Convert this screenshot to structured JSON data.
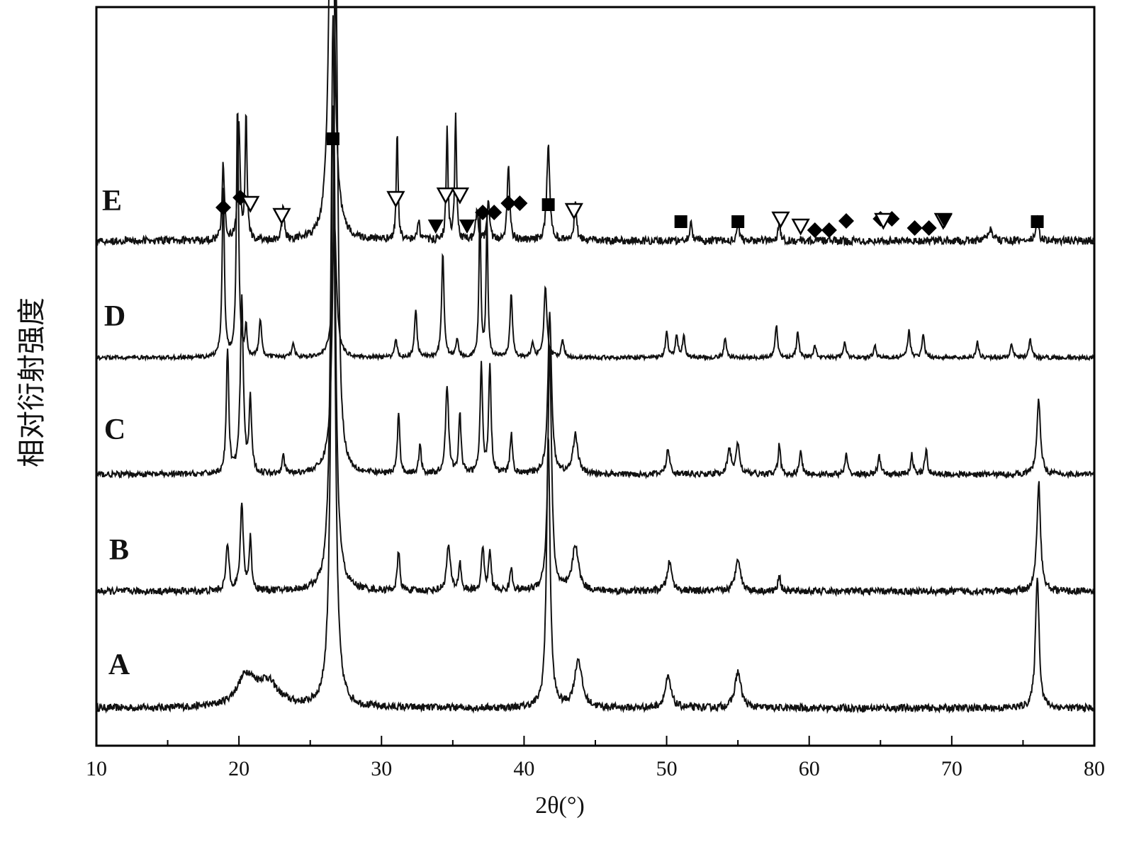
{
  "chart_data": {
    "type": "line",
    "title": "",
    "xlabel": "2θ(°)",
    "ylabel": "相对衍射强度",
    "xlim": [
      10,
      80
    ],
    "x_ticks": [
      10,
      20,
      30,
      40,
      50,
      60,
      70,
      80
    ],
    "x_tick_labels": [
      "10",
      "20",
      "30",
      "40",
      "50",
      "60",
      "70",
      "80"
    ],
    "y_ticks_shown": false,
    "grid": false,
    "legend": "none; series labelled at left of each trace",
    "series": [
      {
        "name": "A",
        "baseline": 0,
        "peaks": [
          [
            20.5,
            0.05,
            1.5
          ],
          [
            22,
            0.04,
            1.8
          ],
          [
            26.6,
            1.0,
            0.35
          ],
          [
            41.7,
            0.45,
            0.3
          ],
          [
            43.8,
            0.08,
            0.6
          ],
          [
            50.1,
            0.05,
            0.5
          ],
          [
            55.0,
            0.06,
            0.5
          ],
          [
            76.0,
            0.22,
            0.3
          ]
        ]
      },
      {
        "name": "B",
        "baseline": 1,
        "peaks": [
          [
            19.2,
            0.08,
            0.25
          ],
          [
            20.2,
            0.15,
            0.25
          ],
          [
            20.8,
            0.09,
            0.2
          ],
          [
            26.6,
            1.0,
            0.35
          ],
          [
            31.2,
            0.07,
            0.2
          ],
          [
            34.7,
            0.08,
            0.3
          ],
          [
            35.5,
            0.05,
            0.2
          ],
          [
            37.1,
            0.08,
            0.2
          ],
          [
            37.6,
            0.07,
            0.2
          ],
          [
            39.1,
            0.04,
            0.2
          ],
          [
            41.8,
            0.42,
            0.3
          ],
          [
            43.6,
            0.08,
            0.5
          ],
          [
            50.2,
            0.05,
            0.4
          ],
          [
            55.0,
            0.06,
            0.4
          ],
          [
            57.9,
            0.03,
            0.2
          ],
          [
            76.1,
            0.19,
            0.3
          ]
        ]
      },
      {
        "name": "C",
        "baseline": 2,
        "peaks": [
          [
            19.2,
            0.25,
            0.2
          ],
          [
            20.2,
            0.35,
            0.25
          ],
          [
            20.8,
            0.15,
            0.2
          ],
          [
            23.1,
            0.04,
            0.2
          ],
          [
            26.8,
            1.0,
            0.35
          ],
          [
            31.2,
            0.12,
            0.2
          ],
          [
            32.7,
            0.06,
            0.2
          ],
          [
            34.6,
            0.18,
            0.25
          ],
          [
            35.5,
            0.12,
            0.2
          ],
          [
            37.0,
            0.22,
            0.2
          ],
          [
            37.6,
            0.22,
            0.2
          ],
          [
            39.1,
            0.08,
            0.2
          ],
          [
            41.8,
            0.33,
            0.3
          ],
          [
            43.6,
            0.08,
            0.4
          ],
          [
            50.1,
            0.05,
            0.3
          ],
          [
            54.4,
            0.05,
            0.3
          ],
          [
            55.0,
            0.06,
            0.3
          ],
          [
            57.9,
            0.06,
            0.2
          ],
          [
            59.4,
            0.05,
            0.2
          ],
          [
            62.6,
            0.04,
            0.2
          ],
          [
            64.9,
            0.04,
            0.2
          ],
          [
            67.2,
            0.04,
            0.2
          ],
          [
            68.2,
            0.05,
            0.2
          ],
          [
            76.1,
            0.15,
            0.3
          ]
        ]
      },
      {
        "name": "D",
        "baseline": 3,
        "peaks": [
          [
            18.9,
            0.55,
            0.18
          ],
          [
            19.9,
            0.8,
            0.18
          ],
          [
            20.5,
            0.1,
            0.15
          ],
          [
            21.5,
            0.12,
            0.2
          ],
          [
            23.8,
            0.05,
            0.2
          ],
          [
            26.7,
            0.42,
            0.35
          ],
          [
            31.0,
            0.06,
            0.2
          ],
          [
            32.4,
            0.15,
            0.2
          ],
          [
            34.3,
            0.33,
            0.2
          ],
          [
            35.3,
            0.06,
            0.2
          ],
          [
            36.9,
            0.48,
            0.15
          ],
          [
            37.4,
            0.44,
            0.15
          ],
          [
            39.1,
            0.2,
            0.2
          ],
          [
            40.6,
            0.05,
            0.2
          ],
          [
            41.5,
            0.22,
            0.25
          ],
          [
            42.7,
            0.06,
            0.2
          ],
          [
            50.0,
            0.08,
            0.2
          ],
          [
            50.7,
            0.07,
            0.2
          ],
          [
            51.2,
            0.07,
            0.2
          ],
          [
            54.1,
            0.06,
            0.2
          ],
          [
            57.7,
            0.1,
            0.2
          ],
          [
            59.2,
            0.08,
            0.2
          ],
          [
            60.4,
            0.04,
            0.2
          ],
          [
            62.5,
            0.05,
            0.2
          ],
          [
            64.6,
            0.04,
            0.2
          ],
          [
            67.0,
            0.09,
            0.2
          ],
          [
            68.0,
            0.07,
            0.2
          ],
          [
            71.8,
            0.05,
            0.2
          ],
          [
            74.2,
            0.04,
            0.2
          ],
          [
            75.5,
            0.06,
            0.2
          ]
        ]
      },
      {
        "name": "E",
        "baseline": 4,
        "peaks": [
          [
            18.9,
            0.12,
            0.2
          ],
          [
            20.0,
            0.18,
            0.2
          ],
          [
            20.5,
            0.2,
            0.15
          ],
          [
            23.1,
            0.05,
            0.2
          ],
          [
            26.5,
            0.75,
            0.4
          ],
          [
            31.1,
            0.17,
            0.15
          ],
          [
            32.6,
            0.03,
            0.2
          ],
          [
            34.6,
            0.18,
            0.15
          ],
          [
            35.2,
            0.2,
            0.15
          ],
          [
            36.7,
            0.05,
            0.2
          ],
          [
            37.5,
            0.06,
            0.2
          ],
          [
            38.9,
            0.12,
            0.2
          ],
          [
            41.7,
            0.15,
            0.25
          ],
          [
            43.6,
            0.06,
            0.2
          ],
          [
            51.7,
            0.03,
            0.2
          ],
          [
            55.0,
            0.03,
            0.2
          ],
          [
            57.9,
            0.03,
            0.2
          ],
          [
            72.7,
            0.02,
            0.3
          ],
          [
            76.0,
            0.04,
            0.2
          ]
        ]
      }
    ],
    "markers": [
      {
        "symbol": "diamond",
        "positions": [
          18.9,
          20.1,
          37.1,
          37.9,
          38.9,
          39.7,
          60.4,
          61.4,
          62.6,
          65.0,
          65.8,
          67.4,
          68.4
        ]
      },
      {
        "symbol": "triangle-down-open",
        "positions": [
          20.8,
          23.0,
          31.0,
          34.5,
          35.5,
          43.5,
          58.0,
          59.4,
          65.2,
          69.4
        ]
      },
      {
        "symbol": "square",
        "positions": [
          26.6,
          41.7,
          51.0,
          55.0,
          76.0
        ]
      },
      {
        "symbol": "triangle-down-filled",
        "positions": [
          33.8,
          36.0,
          69.5
        ]
      }
    ]
  }
}
